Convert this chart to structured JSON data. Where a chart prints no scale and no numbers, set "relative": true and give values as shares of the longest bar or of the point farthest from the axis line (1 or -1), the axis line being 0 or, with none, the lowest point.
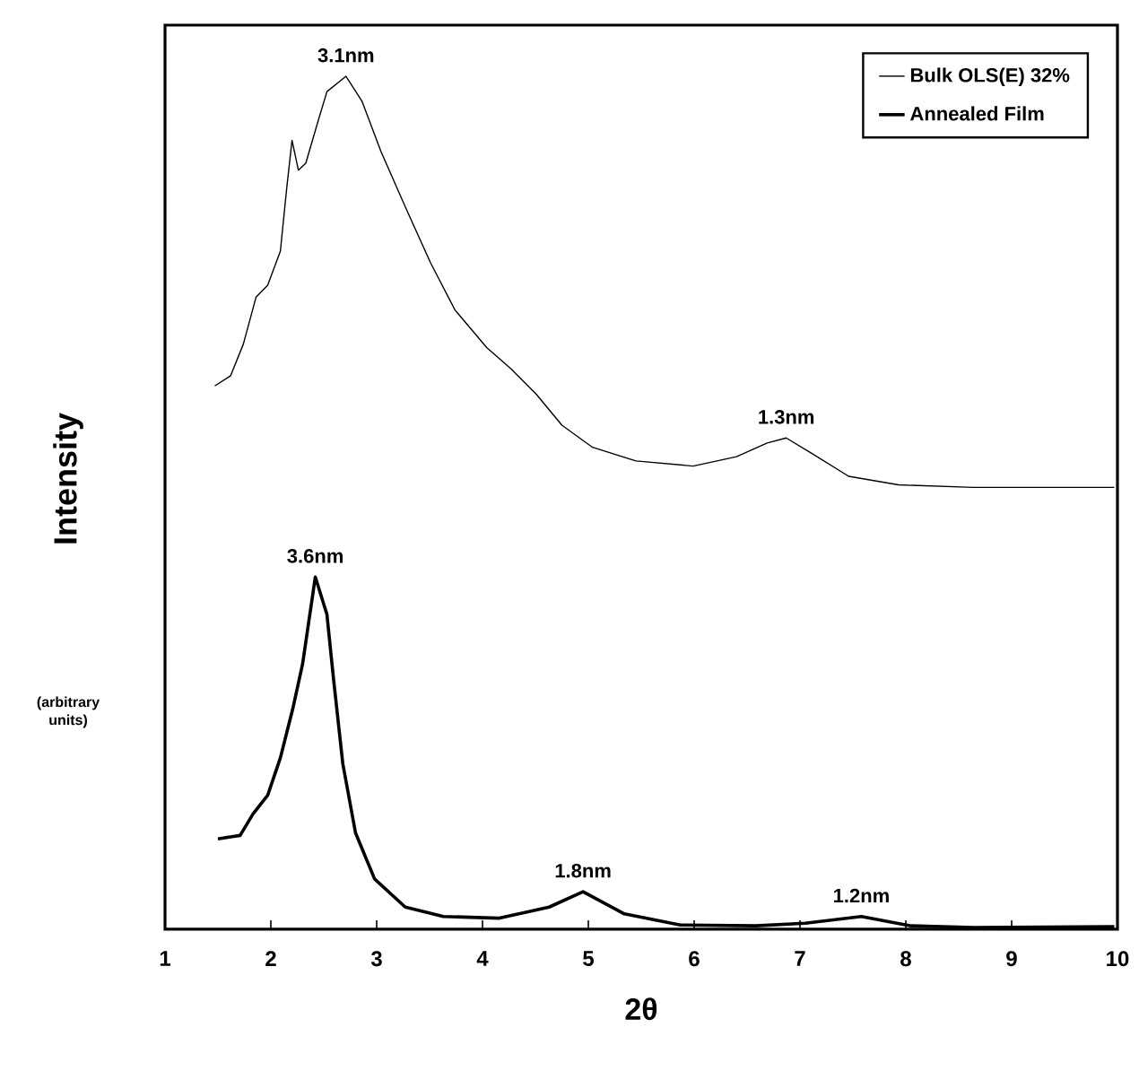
{
  "chart_data": {
    "type": "line",
    "relative": true,
    "xlabel": "2θ",
    "ylabel": "Intensity",
    "xlim": [
      1,
      10
    ],
    "xticks": [
      1,
      2,
      3,
      4,
      5,
      6,
      7,
      8,
      9,
      10
    ],
    "tick_labels": "x",
    "legend": "top right",
    "grid": false,
    "marker": "none",
    "line_style": "solid",
    "series": [
      {
        "name": "Bulk OLS(E) 32%",
        "color": "#000000",
        "x": [
          1.47,
          1.62,
          1.74,
          1.86,
          1.97,
          2.09,
          2.15,
          2.2,
          2.26,
          2.33,
          2.45,
          2.53,
          2.71,
          2.86,
          3.04,
          3.27,
          3.51,
          3.74,
          4.04,
          4.27,
          4.51,
          4.75,
          5.04,
          5.45,
          5.99,
          6.4,
          6.69,
          6.87,
          7.11,
          7.46,
          7.93,
          8.64,
          9.97
        ],
        "values": [
          0.637,
          0.649,
          0.686,
          0.741,
          0.755,
          0.795,
          0.869,
          0.925,
          0.89,
          0.898,
          0.949,
          0.982,
          1.0,
          0.971,
          0.912,
          0.847,
          0.781,
          0.726,
          0.682,
          0.657,
          0.627,
          0.591,
          0.565,
          0.549,
          0.543,
          0.554,
          0.57,
          0.576,
          0.558,
          0.531,
          0.521,
          0.518,
          0.518
        ]
      },
      {
        "name": "Annealed Film",
        "color": "#000000",
        "x": [
          1.5,
          1.71,
          1.83,
          1.97,
          2.09,
          2.21,
          2.3,
          2.42,
          2.53,
          2.59,
          2.68,
          2.8,
          2.98,
          3.27,
          3.63,
          4.16,
          4.63,
          4.95,
          5.34,
          5.87,
          6.58,
          7.05,
          7.58,
          8.05,
          8.64,
          9.97
        ],
        "values": [
          0.106,
          0.11,
          0.135,
          0.157,
          0.201,
          0.26,
          0.311,
          0.413,
          0.369,
          0.296,
          0.194,
          0.113,
          0.059,
          0.026,
          0.015,
          0.013,
          0.026,
          0.044,
          0.018,
          0.005,
          0.004,
          0.007,
          0.015,
          0.004,
          0.002,
          0.003
        ]
      }
    ],
    "annotations": [
      {
        "text": "3.1nm",
        "x": 2.71,
        "y": 1.0
      },
      {
        "text": "1.3nm",
        "x": 6.87,
        "y": 0.576
      },
      {
        "text": "3.6nm",
        "x": 2.42,
        "y": 0.413
      },
      {
        "text": "1.8nm",
        "x": 4.95,
        "y": 0.044
      },
      {
        "text": "1.2nm",
        "x": 7.58,
        "y": 0.015
      },
      "(arbitrary units)"
    ]
  }
}
